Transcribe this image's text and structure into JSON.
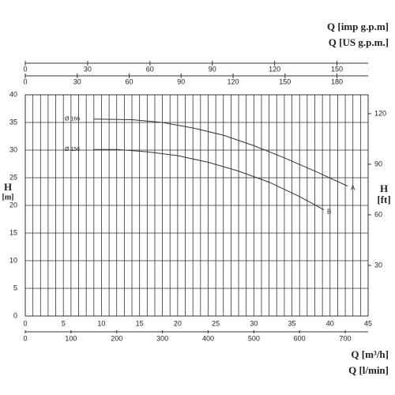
{
  "chart_data": {
    "type": "line",
    "xlabel": "Q [m³/h]",
    "xlim": [
      0,
      45
    ],
    "xticks": [
      0,
      5,
      10,
      15,
      20,
      25,
      30,
      35,
      40,
      45
    ],
    "x_minor_grid_step": 1,
    "ylabel_lines": [
      "H",
      "[m]"
    ],
    "ylim": [
      0,
      40
    ],
    "yticks": [
      0,
      5,
      10,
      15,
      20,
      25,
      30,
      35,
      40
    ],
    "y2label_lines": [
      "H",
      "[ft]"
    ],
    "y2lim": [
      0,
      131.2
    ],
    "y2ticks": [
      30,
      60,
      90,
      120
    ],
    "top_axes": [
      {
        "label": "Q [imp g.p.m]",
        "xlim": [
          0,
          165
        ],
        "xticks": [
          0,
          30,
          60,
          90,
          120,
          150
        ]
      },
      {
        "label": "Q [US g.p.m.]",
        "xlim": [
          0,
          198
        ],
        "xticks": [
          0,
          30,
          60,
          90,
          120,
          150,
          180
        ]
      }
    ],
    "bottom_axis2": {
      "label": "Q [l/min]",
      "xlim": [
        0,
        750
      ],
      "xticks": [
        0,
        100,
        200,
        300,
        400,
        500,
        600,
        700
      ]
    },
    "grid": true,
    "color": "#333333",
    "series": [
      {
        "name": "Ø 166",
        "end_label": "A",
        "x": [
          9,
          14,
          18,
          22,
          26,
          30,
          34,
          38,
          42.3
        ],
        "values": [
          35.6,
          35.5,
          35,
          34,
          32.7,
          30.8,
          28.6,
          26.2,
          23.5
        ]
      },
      {
        "name": "Ø 156",
        "end_label": "B",
        "x": [
          9,
          12,
          16,
          20,
          24,
          28,
          32,
          36,
          39.2
        ],
        "values": [
          30.1,
          30.1,
          29.7,
          29,
          27.8,
          26.2,
          24.2,
          21.6,
          19.2
        ]
      }
    ]
  }
}
